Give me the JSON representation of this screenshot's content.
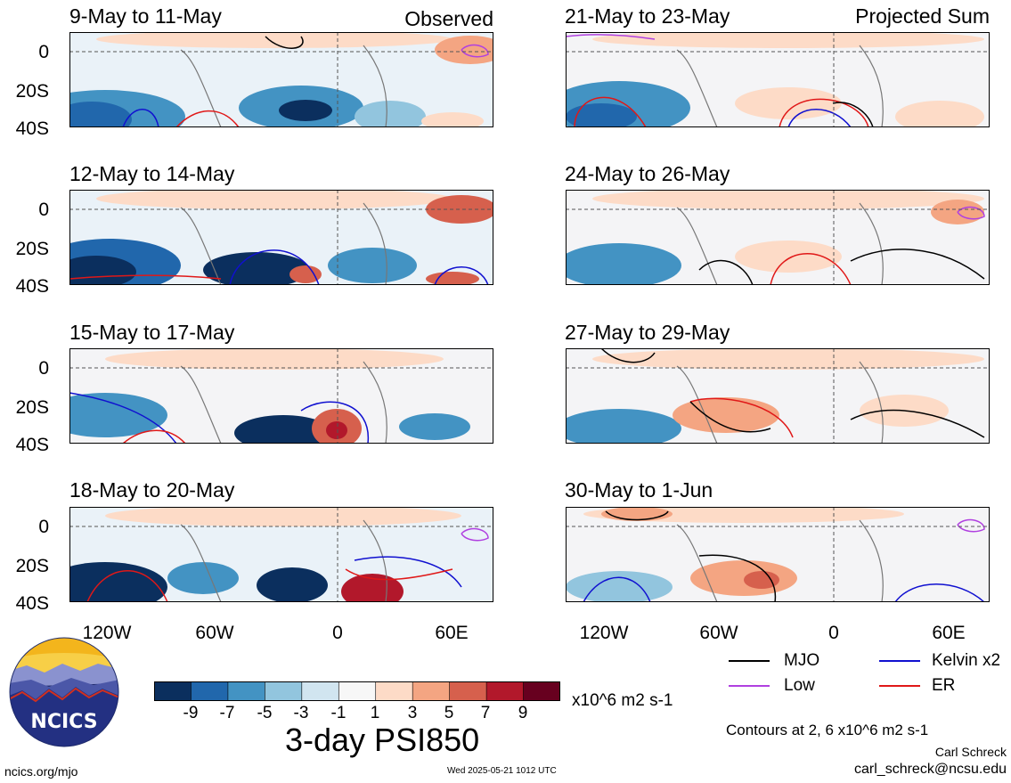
{
  "panels": [
    {
      "title": "9-May to 11-May",
      "tag": "Observed"
    },
    {
      "title": "12-May to 14-May",
      "tag": ""
    },
    {
      "title": "15-May to 17-May",
      "tag": ""
    },
    {
      "title": "18-May to 20-May",
      "tag": ""
    },
    {
      "title": "21-May to 23-May",
      "tag": "Projected Sum"
    },
    {
      "title": "24-May to 26-May",
      "tag": ""
    },
    {
      "title": "27-May to 29-May",
      "tag": ""
    },
    {
      "title": "30-May to 1-Jun",
      "tag": ""
    }
  ],
  "y_ticks": [
    "0",
    "20S",
    "40S"
  ],
  "x_ticks": [
    "120W",
    "60W",
    "0",
    "60E"
  ],
  "legend": {
    "mjo": "MJO",
    "mjo_color": "#000000",
    "kelvin": "Kelvin x2",
    "kelvin_color": "#1010d0",
    "low": "Low",
    "low_color": "#b040e0",
    "er": "ER",
    "er_color": "#e01818"
  },
  "colorbar": {
    "labels": [
      "-9",
      "-7",
      "-5",
      "-3",
      "-1",
      "1",
      "3",
      "5",
      "7",
      "9"
    ],
    "colors": [
      "#0b2f5e",
      "#2167ac",
      "#4393c3",
      "#92c5de",
      "#d1e5f0",
      "#f7f7f7",
      "#fddbc7",
      "#f4a582",
      "#d6604d",
      "#b2182b",
      "#67001f"
    ],
    "units": "x10^6 m2 s-1"
  },
  "figure_title": "3-day PSI850",
  "contours_note": "Contours at 2, 6 x10^6 m2 s-1",
  "author": "Carl Schreck",
  "email": "carl_schreck@ncsu.edu",
  "site": "ncics.org/mjo",
  "timestamp": "Wed 2025-05-21 1012 UTC",
  "logo_text": "NCICS"
}
